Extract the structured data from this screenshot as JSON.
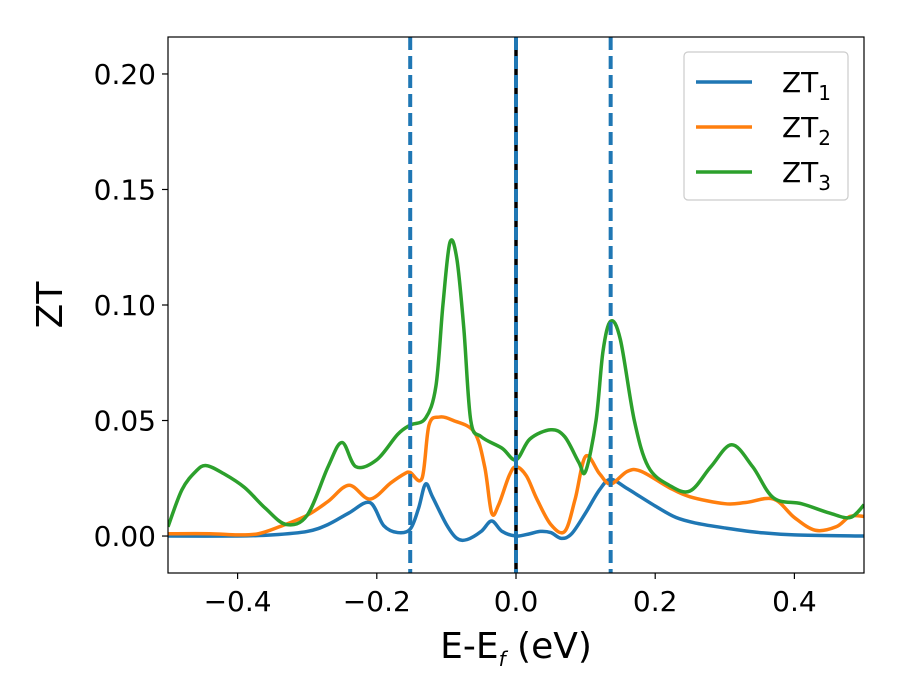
{
  "chart_data": {
    "type": "line",
    "title": "",
    "xlabel": {
      "main": "E-E",
      "sub": "f",
      "suffix": " (eV)"
    },
    "ylabel": "ZT",
    "xlim": [
      -0.5,
      0.5
    ],
    "ylim": [
      -0.016,
      0.216
    ],
    "grid": false,
    "legend_position": "top-right",
    "x_ticks": [
      {
        "value": -0.4,
        "label": "−0.4"
      },
      {
        "value": -0.2,
        "label": "−0.2"
      },
      {
        "value": 0.0,
        "label": "0.0"
      },
      {
        "value": 0.2,
        "label": "0.2"
      },
      {
        "value": 0.4,
        "label": "0.4"
      }
    ],
    "y_ticks": [
      {
        "value": 0.0,
        "label": "0.00"
      },
      {
        "value": 0.05,
        "label": "0.05"
      },
      {
        "value": 0.1,
        "label": "0.10"
      },
      {
        "value": 0.15,
        "label": "0.15"
      },
      {
        "value": 0.2,
        "label": "0.20"
      }
    ],
    "vertical_lines": [
      {
        "x": -0.152,
        "style": "dashed",
        "color": "#1f77b4"
      },
      {
        "x": 0.0,
        "style": "solid",
        "color": "#000000"
      },
      {
        "x": 0.0,
        "style": "dashed",
        "color": "#1f77b4"
      },
      {
        "x": 0.136,
        "style": "dashed",
        "color": "#1f77b4"
      }
    ],
    "series": [
      {
        "name": "ZT",
        "name_sub": "1",
        "color": "#1f77b4",
        "points": [
          [
            -0.5,
            0.0
          ],
          [
            -0.4,
            0.0
          ],
          [
            -0.35,
            0.0005
          ],
          [
            -0.3,
            0.002
          ],
          [
            -0.27,
            0.005
          ],
          [
            -0.24,
            0.01
          ],
          [
            -0.21,
            0.0145
          ],
          [
            -0.19,
            0.0045
          ],
          [
            -0.17,
            0.0015
          ],
          [
            -0.152,
            0.003
          ],
          [
            -0.14,
            0.012
          ],
          [
            -0.13,
            0.0225
          ],
          [
            -0.12,
            0.017
          ],
          [
            -0.1,
            0.005
          ],
          [
            -0.085,
            -0.001
          ],
          [
            -0.07,
            -0.0015
          ],
          [
            -0.05,
            0.002
          ],
          [
            -0.035,
            0.0065
          ],
          [
            -0.02,
            0.002
          ],
          [
            0.0,
            0.0
          ],
          [
            0.02,
            0.001
          ],
          [
            0.035,
            0.002
          ],
          [
            0.05,
            0.0015
          ],
          [
            0.065,
            -0.001
          ],
          [
            0.08,
            0.001
          ],
          [
            0.1,
            0.01
          ],
          [
            0.12,
            0.02
          ],
          [
            0.136,
            0.0245
          ],
          [
            0.16,
            0.0205
          ],
          [
            0.2,
            0.013
          ],
          [
            0.23,
            0.008
          ],
          [
            0.26,
            0.0055
          ],
          [
            0.3,
            0.0035
          ],
          [
            0.35,
            0.0015
          ],
          [
            0.4,
            0.0005
          ],
          [
            0.5,
            0.0
          ]
        ]
      },
      {
        "name": "ZT",
        "name_sub": "2",
        "color": "#ff7f0e",
        "points": [
          [
            -0.5,
            0.001
          ],
          [
            -0.44,
            0.001
          ],
          [
            -0.4,
            0.0005
          ],
          [
            -0.37,
            0.001
          ],
          [
            -0.34,
            0.004
          ],
          [
            -0.3,
            0.009
          ],
          [
            -0.27,
            0.015
          ],
          [
            -0.24,
            0.022
          ],
          [
            -0.21,
            0.016
          ],
          [
            -0.18,
            0.023
          ],
          [
            -0.16,
            0.027
          ],
          [
            -0.152,
            0.0275
          ],
          [
            -0.135,
            0.025
          ],
          [
            -0.125,
            0.048
          ],
          [
            -0.11,
            0.0515
          ],
          [
            -0.09,
            0.05
          ],
          [
            -0.06,
            0.045
          ],
          [
            -0.045,
            0.03
          ],
          [
            -0.035,
            0.01
          ],
          [
            -0.025,
            0.0135
          ],
          [
            -0.01,
            0.026
          ],
          [
            0.0,
            0.03
          ],
          [
            0.015,
            0.026
          ],
          [
            0.03,
            0.016
          ],
          [
            0.05,
            0.005
          ],
          [
            0.07,
            0.002
          ],
          [
            0.085,
            0.016
          ],
          [
            0.1,
            0.0345
          ],
          [
            0.12,
            0.027
          ],
          [
            0.136,
            0.0225
          ],
          [
            0.16,
            0.028
          ],
          [
            0.18,
            0.028
          ],
          [
            0.22,
            0.021
          ],
          [
            0.25,
            0.017
          ],
          [
            0.3,
            0.014
          ],
          [
            0.33,
            0.0145
          ],
          [
            0.37,
            0.016
          ],
          [
            0.4,
            0.008
          ],
          [
            0.43,
            0.0025
          ],
          [
            0.46,
            0.004
          ],
          [
            0.48,
            0.0085
          ],
          [
            0.5,
            0.0085
          ]
        ]
      },
      {
        "name": "ZT",
        "name_sub": "3",
        "color": "#2ca02c",
        "points": [
          [
            -0.5,
            0.004
          ],
          [
            -0.48,
            0.02
          ],
          [
            -0.46,
            0.028
          ],
          [
            -0.445,
            0.0305
          ],
          [
            -0.42,
            0.027
          ],
          [
            -0.39,
            0.021
          ],
          [
            -0.36,
            0.012
          ],
          [
            -0.33,
            0.005
          ],
          [
            -0.3,
            0.009
          ],
          [
            -0.27,
            0.03
          ],
          [
            -0.25,
            0.0405
          ],
          [
            -0.23,
            0.03
          ],
          [
            -0.2,
            0.033
          ],
          [
            -0.17,
            0.044
          ],
          [
            -0.152,
            0.048
          ],
          [
            -0.13,
            0.051
          ],
          [
            -0.115,
            0.065
          ],
          [
            -0.105,
            0.1
          ],
          [
            -0.095,
            0.127
          ],
          [
            -0.085,
            0.12
          ],
          [
            -0.075,
            0.09
          ],
          [
            -0.065,
            0.05
          ],
          [
            -0.05,
            0.043
          ],
          [
            -0.02,
            0.038
          ],
          [
            0.0,
            0.033
          ],
          [
            0.02,
            0.042
          ],
          [
            0.05,
            0.046
          ],
          [
            0.07,
            0.043
          ],
          [
            0.09,
            0.032
          ],
          [
            0.1,
            0.028
          ],
          [
            0.115,
            0.05
          ],
          [
            0.125,
            0.08
          ],
          [
            0.136,
            0.093
          ],
          [
            0.15,
            0.085
          ],
          [
            0.17,
            0.05
          ],
          [
            0.19,
            0.03
          ],
          [
            0.22,
            0.022
          ],
          [
            0.25,
            0.0195
          ],
          [
            0.28,
            0.03
          ],
          [
            0.31,
            0.0395
          ],
          [
            0.34,
            0.03
          ],
          [
            0.37,
            0.0165
          ],
          [
            0.41,
            0.014
          ],
          [
            0.45,
            0.01
          ],
          [
            0.48,
            0.008
          ],
          [
            0.5,
            0.0135
          ]
        ]
      }
    ]
  }
}
